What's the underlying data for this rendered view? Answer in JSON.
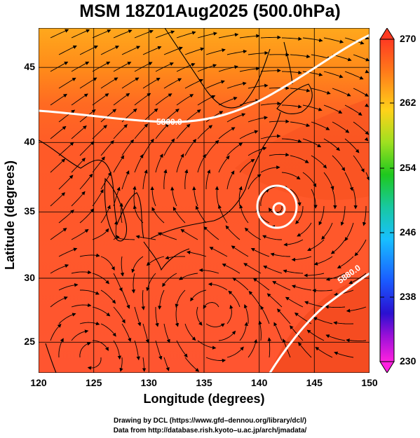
{
  "title": "MSM 18Z01Aug2025 (500.0hPa)",
  "x_axis": {
    "label": "Longitude (degrees)",
    "ticks": [
      "120",
      "125",
      "130",
      "135",
      "140",
      "145",
      "150"
    ],
    "range": [
      120,
      150
    ]
  },
  "y_axis": {
    "label": "Latitude  (degrees)",
    "ticks": [
      "25",
      "30",
      "35",
      "40",
      "45"
    ],
    "range": [
      22.4,
      47.6
    ]
  },
  "contours": [
    {
      "label": "5800.0"
    },
    {
      "label": "5880.0"
    }
  ],
  "colorbar": {
    "ticks": [
      "270",
      "262",
      "254",
      "246",
      "238",
      "230"
    ],
    "range": [
      230,
      270
    ]
  },
  "credits": [
    "Drawing by DCL (https://www.gfd–dennou.org/library/dcl/)",
    "Data from http://database.rish.kyoto–u.ac.jp/arch/jmadata/"
  ],
  "colors": {
    "warm": "#ff5a2a",
    "warmer": "#f2501e",
    "north": "#ff9a1a",
    "contour": "#ffffff"
  }
}
